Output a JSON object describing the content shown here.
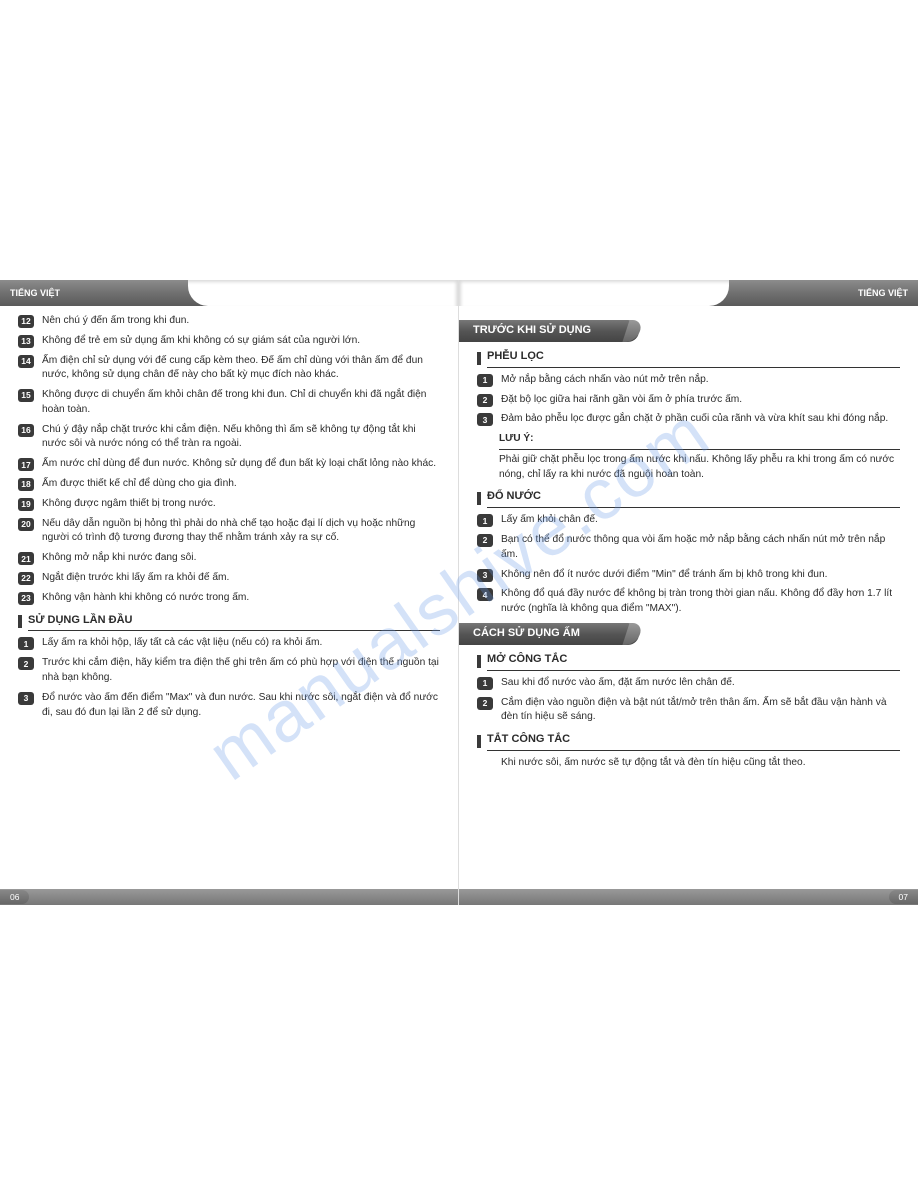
{
  "watermark": "manualshive.com",
  "lang_label": "TIẾNG VIỆT",
  "left": {
    "page_num": "06",
    "warnings": [
      {
        "n": "12",
        "t": "Nên chú ý đến ấm trong khi đun."
      },
      {
        "n": "13",
        "t": "Không để trẻ em sử dụng ấm khi không có sự giám sát của người lớn."
      },
      {
        "n": "14",
        "t": "Ấm điện chỉ sử dụng với đế cung cấp kèm theo. Đế ấm chỉ dùng với thân ấm để đun nước, không sử dụng chân đế này cho bất kỳ mục đích nào khác."
      },
      {
        "n": "15",
        "t": "Không được di chuyển  ấm khỏi chân đế trong khi đun. Chỉ di chuyển khi đã ngắt điện hoàn toàn."
      },
      {
        "n": "16",
        "t": "Chú ý đậy nắp chặt trước khi cắm điện. Nếu không thì ấm sẽ không tự động tắt khi nước sôi và nước nóng có thể tràn ra ngoài."
      },
      {
        "n": "17",
        "t": "Ấm nước chỉ dùng để đun nước. Không sử dụng để đun bất kỳ loại chất lỏng nào khác."
      },
      {
        "n": "18",
        "t": "Ấm được thiết kế chỉ để dùng cho gia đình."
      },
      {
        "n": "19",
        "t": "Không được ngâm thiết bị trong nước."
      },
      {
        "n": "20",
        "t": "Nếu dây dẫn nguồn bị hỏng thì phải do nhà chế tạo hoặc đại lí dịch vụ hoặc những người có trình độ tương đương thay thế nhằm tránh xảy ra sự cố."
      },
      {
        "n": "21",
        "t": "Không mở nắp khi nước đang sôi."
      },
      {
        "n": "22",
        "t": "Ngắt điện trước khi lấy ấm ra khỏi đế ấm."
      },
      {
        "n": "23",
        "t": "Không vận hành khi không có nước trong ấm."
      }
    ],
    "first_use_title": "SỬ DỤNG LẦN ĐẦU",
    "first_use": [
      {
        "n": "1",
        "t": "Lấy ấm ra khỏi hộp, lấy tất cả các vật liệu (nếu có) ra khỏi ấm."
      },
      {
        "n": "2",
        "t": "Trước khi cắm điện, hãy kiểm tra điện thế ghi trên ấm có phù hợp với điện thế nguồn tại nhà bạn không."
      },
      {
        "n": "3",
        "t": "Đổ nước vào ấm đến  điểm \"Max\" và đun nước. Sau khi nước sôi, ngắt điện và đổ nước đi, sau đó đun lại lần 2 để sử dụng."
      }
    ]
  },
  "right": {
    "page_num": "07",
    "before_title": "TRƯỚC KHI SỬ DỤNG",
    "filter_title": "PHỄU LỌC",
    "filter": [
      {
        "n": "1",
        "t": "Mở nắp bằng cách nhấn vào nút mở trên nắp."
      },
      {
        "n": "2",
        "t": "Đặt bộ lọc giữa hai rãnh gần vòi ấm ở phía trước ấm."
      },
      {
        "n": "3",
        "t": "Đảm bảo phễu lọc được gắn chặt ở phần cuối của rãnh và vừa khít sau khi đóng nắp."
      }
    ],
    "note_label": "LƯU Ý:",
    "note_text": "Phải giữ chặt phễu lọc trong ấm nước khi nấu. Không lấy phễu ra khi trong ấm có nước nóng, chỉ lấy ra khi nước đã nguội hoàn toàn.",
    "pour_title": "ĐỔ NƯỚC",
    "pour": [
      {
        "n": "1",
        "t": "Lấy ấm khỏi chân đế."
      },
      {
        "n": "2",
        "t": "Bạn có thể đổ nước thông qua vòi ấm hoặc mở nắp bằng cách nhấn nút mở trên nắp ấm."
      },
      {
        "n": "3",
        "t": "Không  nên đổ ít nước dưới điểm \"Min\" để tránh ấm bị khô trong khi đun."
      },
      {
        "n": "4",
        "t": "Không đổ quá đầy nước để không bị tràn trong thời gian nấu. Không đổ đầy hơn 1.7 lít nước (nghĩa là không qua điểm \"MAX\")."
      }
    ],
    "howto_title": "CÁCH SỬ DỤNG ẤM",
    "on_title": "MỞ CÔNG TẮC",
    "on": [
      {
        "n": "1",
        "t": "Sau khi đổ nước vào ấm, đặt ấm nước lên chân đế."
      },
      {
        "n": "2",
        "t": "Cắm điện vào nguồn điện và bật nút tắt/mở trên thân ấm. Ấm sẽ bắt đầu vận hành và đèn tín hiệu sẽ sáng."
      }
    ],
    "off_title": "TẮT CÔNG TẮC",
    "off_text": "Khi nước sôi, ấm nước sẽ tự động tắt và đèn tín hiệu cũng tắt theo."
  }
}
